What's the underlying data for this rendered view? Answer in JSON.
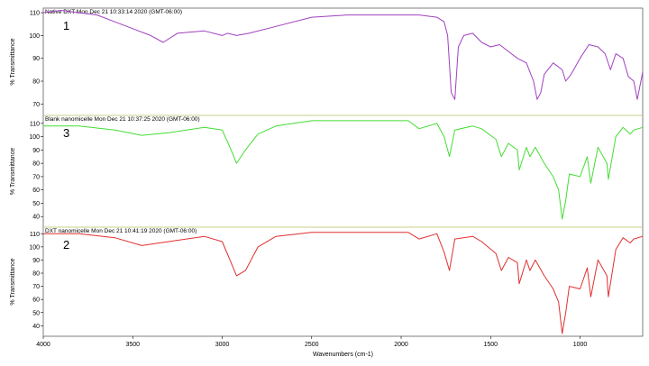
{
  "chart_data": {
    "type": "line",
    "xlabel": "Wavenumbers (cm-1)",
    "xlim": [
      4000,
      650
    ],
    "x_ticks": [
      4000,
      3500,
      3000,
      2500,
      2000,
      1500,
      1000
    ],
    "panels": [
      {
        "title": "Native DXT Mon Dec 21 10:33:14 2020 (GMT-06:00)",
        "label": "1",
        "ylabel": "% Transmittance",
        "color": "#a040c0",
        "ylim": [
          65,
          112
        ],
        "y_ticks": [
          70,
          80,
          90,
          100,
          110
        ],
        "x": [
          4000,
          3900,
          3800,
          3700,
          3600,
          3500,
          3400,
          3330,
          3250,
          3100,
          3000,
          2970,
          2920,
          2850,
          2700,
          2500,
          2300,
          2100,
          1900,
          1800,
          1760,
          1740,
          1720,
          1700,
          1680,
          1650,
          1600,
          1550,
          1500,
          1450,
          1400,
          1350,
          1300,
          1260,
          1240,
          1220,
          1200,
          1150,
          1100,
          1080,
          1050,
          1000,
          950,
          900,
          860,
          830,
          800,
          760,
          730,
          700,
          680,
          650
        ],
        "values": [
          110,
          111,
          110,
          109,
          106,
          103,
          100,
          97,
          101,
          102,
          100,
          101,
          100,
          101,
          104,
          108,
          109,
          109,
          109,
          108,
          106,
          100,
          75,
          72,
          95,
          100,
          101,
          97,
          95,
          96,
          93,
          90,
          88,
          80,
          72,
          75,
          83,
          88,
          85,
          80,
          83,
          90,
          96,
          95,
          92,
          85,
          92,
          90,
          82,
          80,
          72,
          84
        ]
      },
      {
        "title": "Blank nanomicelle Mon Dec 21 10:37:25 2020 (GMT-06:00)",
        "label": "3",
        "ylabel": "% Transmittance",
        "color": "#44dd33",
        "ylim": [
          32,
          116
        ],
        "y_ticks": [
          40,
          50,
          60,
          70,
          80,
          90,
          100,
          110
        ],
        "x": [
          4000,
          3800,
          3600,
          3450,
          3300,
          3100,
          3000,
          2950,
          2920,
          2870,
          2800,
          2700,
          2500,
          2300,
          2100,
          1960,
          1900,
          1800,
          1760,
          1730,
          1700,
          1600,
          1550,
          1470,
          1440,
          1400,
          1350,
          1340,
          1300,
          1280,
          1250,
          1200,
          1150,
          1120,
          1100,
          1080,
          1060,
          1000,
          960,
          940,
          900,
          850,
          842,
          800,
          760,
          720,
          700,
          650
        ],
        "values": [
          108,
          108,
          105,
          101,
          103,
          107,
          105,
          90,
          80,
          90,
          102,
          108,
          112,
          112,
          112,
          112,
          106,
          110,
          100,
          85,
          105,
          108,
          106,
          98,
          85,
          95,
          90,
          75,
          92,
          85,
          92,
          80,
          70,
          60,
          38,
          52,
          72,
          70,
          85,
          65,
          92,
          80,
          68,
          100,
          107,
          102,
          105,
          107
        ]
      },
      {
        "title": "DXT nanomicelle Mon Dec 21 10:41:19 2020 (GMT-06:00)",
        "label": "2",
        "ylabel": "% Transmittance",
        "color": "#e03030",
        "ylim": [
          32,
          115
        ],
        "y_ticks": [
          40,
          50,
          60,
          70,
          80,
          90,
          100,
          110
        ],
        "x": [
          4000,
          3800,
          3600,
          3450,
          3300,
          3100,
          3000,
          2950,
          2920,
          2870,
          2800,
          2700,
          2500,
          2300,
          2100,
          1960,
          1900,
          1800,
          1760,
          1730,
          1700,
          1600,
          1550,
          1470,
          1440,
          1400,
          1350,
          1340,
          1300,
          1280,
          1250,
          1200,
          1150,
          1120,
          1100,
          1080,
          1060,
          1000,
          960,
          940,
          900,
          850,
          842,
          800,
          760,
          720,
          700,
          650
        ],
        "values": [
          110,
          110,
          107,
          101,
          104,
          108,
          104,
          88,
          78,
          82,
          100,
          108,
          111,
          111,
          111,
          111,
          106,
          110,
          96,
          82,
          106,
          108,
          104,
          95,
          82,
          92,
          88,
          72,
          90,
          82,
          90,
          78,
          68,
          58,
          34,
          50,
          70,
          68,
          84,
          62,
          90,
          78,
          62,
          98,
          107,
          103,
          106,
          108
        ]
      }
    ]
  }
}
